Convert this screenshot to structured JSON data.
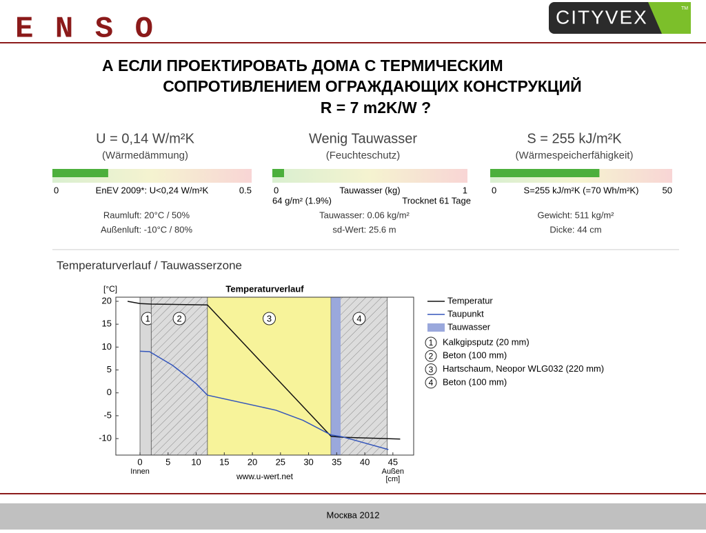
{
  "header": {
    "logo_left": "ENSO",
    "logo_right": "CITYVEX",
    "logo_right_mark": "TM"
  },
  "title": [
    "А ЕСЛИ  ПРОЕКТИРОВАТЬ ДОМА  С ТЕРМИЧЕСКИМ",
    "СОПРОТИВЛЕНИЕМ ОГРАЖДАЮЩИХ КОНСТРУКЦИЙ",
    "R = 7 m2K/W  ?"
  ],
  "panels": [
    {
      "heading": "U = 0,14 W/m²K",
      "subheading": "(Wärmedämmung)",
      "bar_value": 0.14,
      "scale": [
        0,
        0.5
      ],
      "scale_label": "EnEV 2009*: U<0,24 W/m²K",
      "lines": [
        "Raumluft: 20°C / 50%",
        "Außenluft: -10°C / 80%"
      ]
    },
    {
      "heading": "Wenig Tauwasser",
      "subheading": "(Feuchteschutz)",
      "bar_value": 0.06,
      "scale": [
        0,
        1
      ],
      "scale_label": "Tauwasser (kg)",
      "left_note": "64 g/m² (1.9%)",
      "right_note": "Trocknet 61 Tage",
      "lines": [
        "Tauwasser: 0.06 kg/m²",
        "sd-Wert: 25.6 m"
      ]
    },
    {
      "heading": "S = 255 kJ/m²K",
      "subheading": "(Wärmespeicherfähigkeit)",
      "bar_value": 30,
      "scale": [
        0,
        50
      ],
      "scale_label": "S=255 kJ/m²K (=70 Wh/m²K)",
      "lines": [
        "Gewicht: 511 kg/m²",
        "Dicke: 44 cm"
      ]
    }
  ],
  "section_title": "Temperaturverlauf / Tauwasserzone",
  "chart_data": {
    "type": "line",
    "title": "Temperaturverlauf",
    "y_label": "[°C]",
    "x_label": "[cm]",
    "x_left_label": "Innen",
    "x_right_label": "Außen",
    "source": "www.u-wert.net",
    "xlim": [
      -4.3,
      48.7
    ],
    "ylim": [
      -13.6,
      20.9
    ],
    "xticks": [
      0,
      5,
      10,
      15,
      20,
      25,
      30,
      35,
      40,
      45
    ],
    "yticks": [
      -10,
      -5,
      0,
      5,
      10,
      15,
      20
    ],
    "series": [
      {
        "name": "Temperatur",
        "color": "#111111",
        "x": [
          -2.2,
          0,
          2,
          12,
          34,
          36,
          46.3
        ],
        "values": [
          20,
          19.5,
          19.4,
          19.2,
          -9.5,
          -9.7,
          -10.1
        ]
      },
      {
        "name": "Taupunkt",
        "color": "#3355bb",
        "x": [
          0,
          1.7,
          5.8,
          10,
          12,
          24.2,
          29,
          34,
          36,
          44.2
        ],
        "values": [
          9.1,
          9,
          6,
          2,
          -0.5,
          -3.8,
          -6,
          -9.2,
          -9.6,
          -12.4
        ]
      }
    ],
    "condensation": {
      "name": "Tauwasser",
      "color": "#9aa8dc",
      "from": 34,
      "to": 35.7
    },
    "layers": [
      {
        "id": "1",
        "name": "Kalkgipsputz (20 mm)",
        "from": 0,
        "to": 2,
        "color": "#d8d8d8"
      },
      {
        "id": "2",
        "name": "Beton (100 mm)",
        "from": 2,
        "to": 12,
        "color": "#d8d8d8"
      },
      {
        "id": "3",
        "name": "Hartschaum, Neopor WLG032 (220 mm)",
        "from": 12,
        "to": 34,
        "color": "#f7f39a"
      },
      {
        "id": "4",
        "name": "Beton (100 mm)",
        "from": 34,
        "to": 44,
        "color": "#d8d8d8"
      }
    ]
  },
  "footer": "Москва  2012"
}
